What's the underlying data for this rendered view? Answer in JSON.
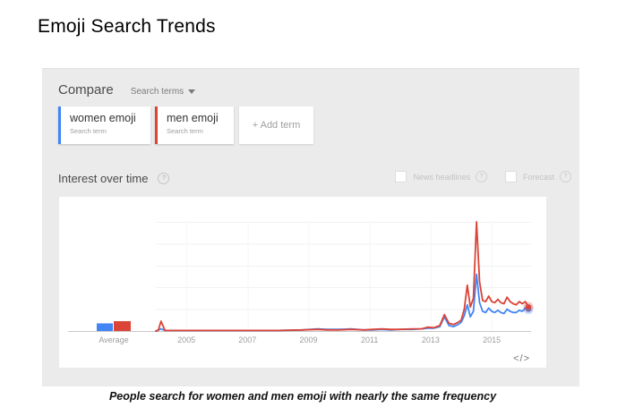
{
  "page": {
    "title": "Emoji Search Trends",
    "caption": "People search for women and men emoji with nearly the same frequency"
  },
  "compare": {
    "label": "Compare",
    "selector": "Search terms",
    "terms": [
      {
        "label": "women emoji",
        "sublabel": "Search term",
        "color": "#4285f4"
      },
      {
        "label": "men emoji",
        "sublabel": "Search term",
        "color": "#db4437"
      }
    ],
    "add_term_label": "+ Add term"
  },
  "interest": {
    "title": "Interest over time",
    "help_icon": "?",
    "options": [
      {
        "label": "News headlines",
        "checked": false
      },
      {
        "label": "Forecast",
        "checked": false
      }
    ]
  },
  "embed_icon": "</>",
  "chart_data": {
    "type": "line",
    "title": "Interest over time",
    "x_axis": {
      "range": [
        2004,
        2016.3
      ],
      "ticks": [
        2005,
        2007,
        2009,
        2011,
        2013,
        2015
      ],
      "average_label": "Average"
    },
    "y_axis": {
      "range": [
        0,
        100
      ],
      "gridlines": [
        20,
        40,
        60,
        80,
        100
      ],
      "labels_visible": false
    },
    "grid": true,
    "legend_position": "none",
    "series": [
      {
        "name": "women emoji",
        "color": "#4285f4",
        "average": 7,
        "points": [
          [
            2004.0,
            0
          ],
          [
            2004.17,
            2
          ],
          [
            2004.3,
            0.5
          ],
          [
            2005,
            0.5
          ],
          [
            2006,
            0.5
          ],
          [
            2007,
            0.5
          ],
          [
            2008,
            0.5
          ],
          [
            2008.8,
            1
          ],
          [
            2009.3,
            2
          ],
          [
            2009.6,
            1.5
          ],
          [
            2010,
            1.5
          ],
          [
            2010.4,
            2
          ],
          [
            2010.8,
            1
          ],
          [
            2011.1,
            1
          ],
          [
            2011.4,
            1.5
          ],
          [
            2011.7,
            1
          ],
          [
            2012,
            1.5
          ],
          [
            2012.4,
            1.5
          ],
          [
            2012.7,
            2
          ],
          [
            2012.9,
            2.5
          ],
          [
            2013.1,
            2.5
          ],
          [
            2013.3,
            4
          ],
          [
            2013.45,
            13
          ],
          [
            2013.6,
            5
          ],
          [
            2013.75,
            4
          ],
          [
            2013.9,
            6
          ],
          [
            2014.0,
            8
          ],
          [
            2014.1,
            14
          ],
          [
            2014.2,
            24
          ],
          [
            2014.3,
            13
          ],
          [
            2014.4,
            18
          ],
          [
            2014.5,
            52
          ],
          [
            2014.6,
            26
          ],
          [
            2014.7,
            18
          ],
          [
            2014.8,
            17
          ],
          [
            2014.9,
            21
          ],
          [
            2015.0,
            18
          ],
          [
            2015.1,
            17
          ],
          [
            2015.2,
            19
          ],
          [
            2015.3,
            17
          ],
          [
            2015.4,
            16
          ],
          [
            2015.5,
            20
          ],
          [
            2015.6,
            18
          ],
          [
            2015.7,
            17
          ],
          [
            2015.8,
            17
          ],
          [
            2015.9,
            19
          ],
          [
            2016.0,
            18
          ],
          [
            2016.1,
            21
          ],
          [
            2016.2,
            20
          ]
        ]
      },
      {
        "name": "men emoji",
        "color": "#db4437",
        "average": 9,
        "points": [
          [
            2004.0,
            0
          ],
          [
            2004.08,
            0.5
          ],
          [
            2004.17,
            9
          ],
          [
            2004.3,
            0.5
          ],
          [
            2005,
            0.5
          ],
          [
            2006,
            0.5
          ],
          [
            2007,
            0.5
          ],
          [
            2008,
            0.5
          ],
          [
            2008.8,
            1
          ],
          [
            2009.3,
            1.5
          ],
          [
            2009.6,
            1
          ],
          [
            2010,
            1
          ],
          [
            2010.4,
            1.5
          ],
          [
            2010.8,
            1
          ],
          [
            2011.1,
            1.5
          ],
          [
            2011.4,
            2
          ],
          [
            2011.7,
            1.5
          ],
          [
            2012,
            1.5
          ],
          [
            2012.4,
            2
          ],
          [
            2012.7,
            2
          ],
          [
            2012.9,
            3.5
          ],
          [
            2013.1,
            3
          ],
          [
            2013.3,
            5
          ],
          [
            2013.45,
            15
          ],
          [
            2013.6,
            7
          ],
          [
            2013.75,
            6
          ],
          [
            2013.9,
            8
          ],
          [
            2014.0,
            10
          ],
          [
            2014.1,
            20
          ],
          [
            2014.2,
            42
          ],
          [
            2014.3,
            22
          ],
          [
            2014.4,
            30
          ],
          [
            2014.5,
            100
          ],
          [
            2014.6,
            45
          ],
          [
            2014.7,
            28
          ],
          [
            2014.8,
            27
          ],
          [
            2014.9,
            32
          ],
          [
            2015.0,
            27
          ],
          [
            2015.1,
            26
          ],
          [
            2015.2,
            29
          ],
          [
            2015.3,
            26
          ],
          [
            2015.4,
            25
          ],
          [
            2015.5,
            31
          ],
          [
            2015.6,
            27
          ],
          [
            2015.7,
            25
          ],
          [
            2015.8,
            24
          ],
          [
            2015.9,
            27
          ],
          [
            2016.0,
            25
          ],
          [
            2016.1,
            27
          ],
          [
            2016.2,
            22
          ]
        ]
      }
    ]
  }
}
